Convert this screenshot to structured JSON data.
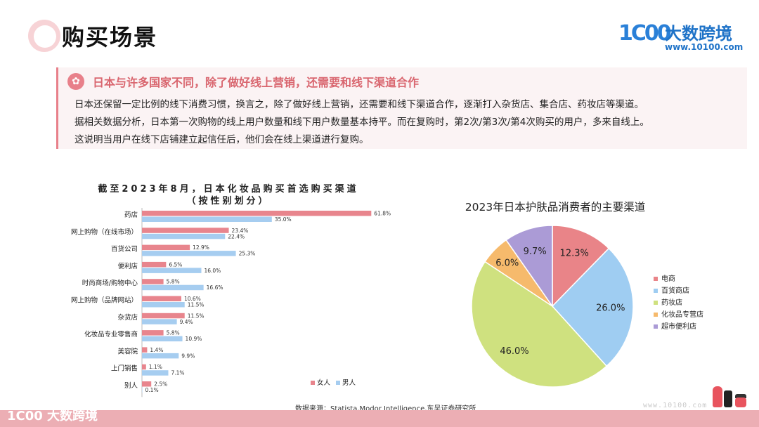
{
  "header": {
    "title": "购买场景",
    "logo_mark": "1C00",
    "logo_name": "大数跨境",
    "logo_url": "www.10100.com"
  },
  "callout": {
    "heading": "日本与许多国家不同，除了做好线上营销，还需要和线下渠道合作",
    "icon": "flower-icon",
    "lines": [
      "日本还保留一定比例的线下消费习惯，换言之，除了做好线上营销，还需要和线下渠道合作，逐渐打入杂货店、集合店、药妆店等渠道。",
      "据相关数据分析，日本第一次购物的线上用户数量和线下用户数量基本持平。而在复购时，第2次/第3次/第4次购买的用户，多来自线上。",
      "这说明当用户在线下店铺建立起信任后，他们会在线上渠道进行复购。"
    ]
  },
  "colors": {
    "accent": "#e8808a",
    "female": "#e8858d",
    "male": "#a6cdf0"
  },
  "chart_data": [
    {
      "type": "bar",
      "orientation": "horizontal",
      "title": "截至2023年8月，日本化妆品购买首选购买渠道",
      "subtitle": "（按性别划分）",
      "categories": [
        "药店",
        "网上购物（在线市场）",
        "百货公司",
        "便利店",
        "时尚商场/购物中心",
        "网上购物（品牌网站）",
        "杂货店",
        "化妆品专业零售商",
        "美容院",
        "上门销售",
        "别人"
      ],
      "series": [
        {
          "name": "女人",
          "color": "#e8858d",
          "values": [
            61.8,
            23.4,
            12.9,
            6.5,
            5.8,
            10.6,
            11.5,
            5.8,
            1.4,
            1.1,
            2.5
          ]
        },
        {
          "name": "男人",
          "color": "#a6cdf0",
          "values": [
            35.0,
            22.4,
            25.3,
            16.0,
            16.6,
            11.5,
            9.4,
            10.9,
            9.9,
            7.1,
            0.1
          ]
        }
      ],
      "value_unit": "%",
      "legend": "bottom-right"
    },
    {
      "type": "pie",
      "title": "2023年日本护肤品消费者的主要渠道",
      "labels": [
        "电商",
        "百货商店",
        "药妆店",
        "化妆品专营店",
        "超市便利店"
      ],
      "values": [
        12.3,
        26.0,
        46.0,
        6.0,
        9.7
      ],
      "colors": [
        "#e98488",
        "#9fcdf2",
        "#cfe17f",
        "#f6ba6c",
        "#ab9bd6"
      ],
      "value_unit": "%",
      "legend": "right"
    }
  ],
  "source": "数据来源：Statista,Modor Intelligence,东吴证券研究所",
  "footer": {
    "logo": "1C00 大数跨境",
    "url": "www.10100.com"
  }
}
